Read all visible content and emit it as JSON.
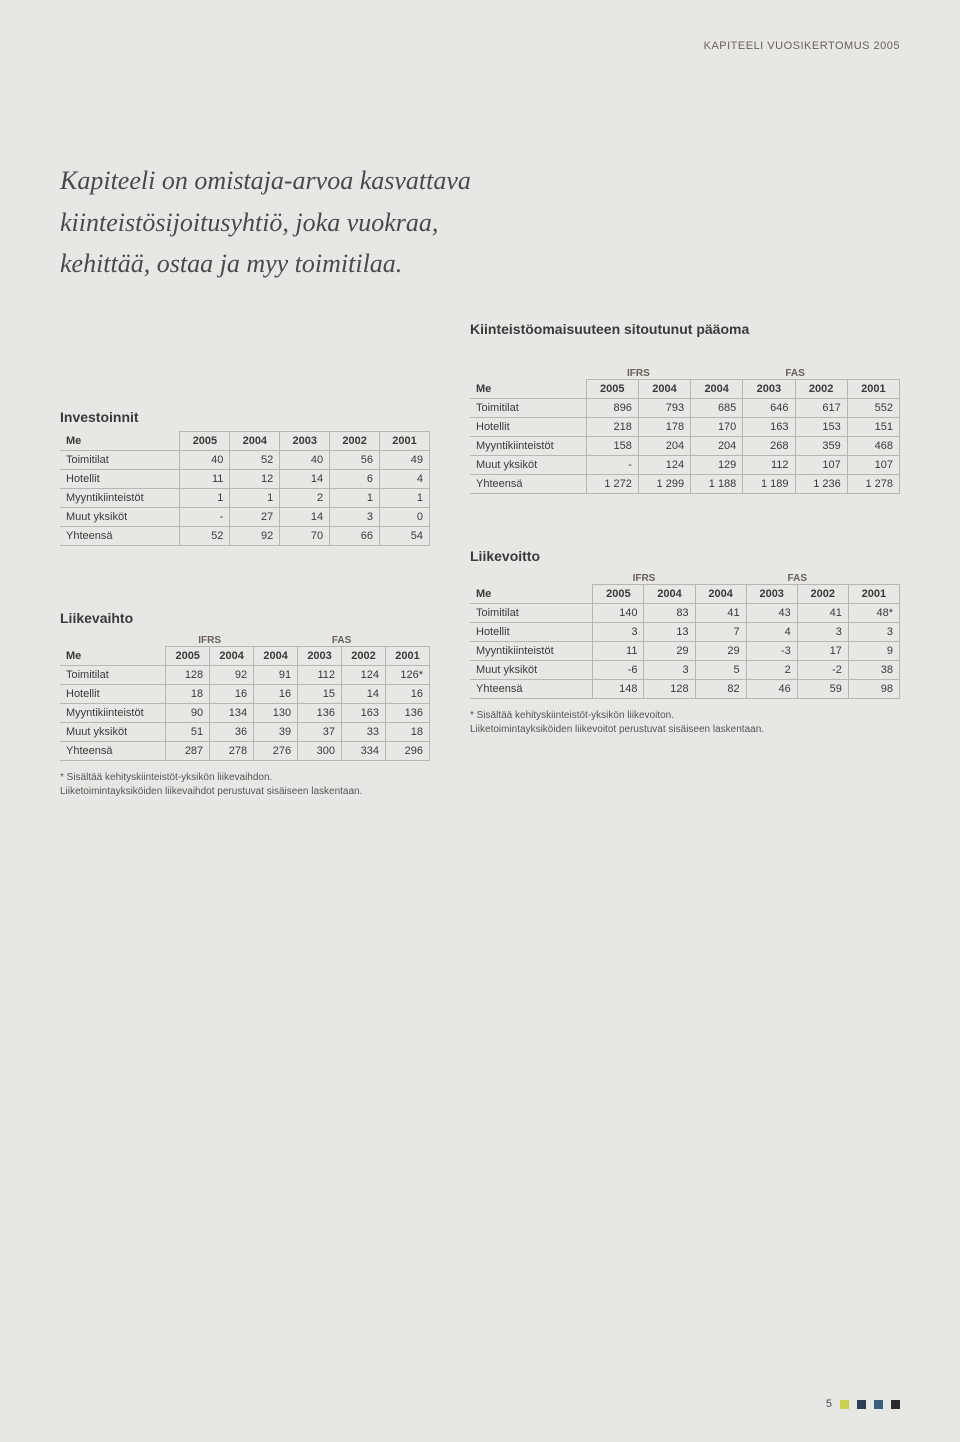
{
  "header_small": "KAPITEELI VUOSIKERTOMUS 2005",
  "quote_lines": [
    "Kapiteeli on omistaja-arvoa kasvattava",
    "kiinteistösijoitusyhtiö, joka vuokraa,",
    "kehittää, ostaa ja myy toimitilaa."
  ],
  "section_titles": {
    "kiinteisto": "Kiinteistöomaisuuteen sitoutunut pääoma",
    "investoinnit": "Investoinnit",
    "liikevaihto": "Liikevaihto",
    "liikevoitto": "Liikevoitto"
  },
  "labels": {
    "me": "Me",
    "ifrs": "IFRS",
    "fas": "FAS",
    "toimitilat": "Toimitilat",
    "hotellit": "Hotellit",
    "myyntikiinteistot": "Myyntikiinteistöt",
    "muut": "Muut yksiköt",
    "yhteensa": "Yhteensä"
  },
  "investoinnit": {
    "years": [
      "2005",
      "2004",
      "2003",
      "2002",
      "2001"
    ],
    "rows": [
      {
        "label": "Toimitilat",
        "vals": [
          "40",
          "52",
          "40",
          "56",
          "49"
        ]
      },
      {
        "label": "Hotellit",
        "vals": [
          "11",
          "12",
          "14",
          "6",
          "4"
        ]
      },
      {
        "label": "Myyntikiinteistöt",
        "vals": [
          "1",
          "1",
          "2",
          "1",
          "1"
        ]
      },
      {
        "label": "Muut yksiköt",
        "vals": [
          "-",
          "27",
          "14",
          "3",
          "0"
        ]
      },
      {
        "label": "Yhteensä",
        "vals": [
          "52",
          "92",
          "70",
          "66",
          "54"
        ]
      }
    ]
  },
  "liikevaihto": {
    "super": [
      "IFRS",
      "FAS"
    ],
    "years": [
      "2005",
      "2004",
      "2004",
      "2003",
      "2002",
      "2001"
    ],
    "rows": [
      {
        "label": "Toimitilat",
        "vals": [
          "128",
          "92",
          "91",
          "112",
          "124",
          "126*"
        ]
      },
      {
        "label": "Hotellit",
        "vals": [
          "18",
          "16",
          "16",
          "15",
          "14",
          "16"
        ]
      },
      {
        "label": "Myyntikiinteistöt",
        "vals": [
          "90",
          "134",
          "130",
          "136",
          "163",
          "136"
        ]
      },
      {
        "label": "Muut yksiköt",
        "vals": [
          "51",
          "36",
          "39",
          "37",
          "33",
          "18"
        ]
      },
      {
        "label": "Yhteensä",
        "vals": [
          "287",
          "278",
          "276",
          "300",
          "334",
          "296"
        ]
      }
    ],
    "footnote1": "* Sisältää kehityskiinteistöt-yksikön liikevaihdon.",
    "footnote2": "Liiketoimintayksiköiden liikevaihdot perustuvat sisäiseen laskentaan."
  },
  "kiinteisto": {
    "super": [
      "IFRS",
      "FAS"
    ],
    "years": [
      "2005",
      "2004",
      "2004",
      "2003",
      "2002",
      "2001"
    ],
    "rows": [
      {
        "label": "Toimitilat",
        "vals": [
          "896",
          "793",
          "685",
          "646",
          "617",
          "552"
        ]
      },
      {
        "label": "Hotellit",
        "vals": [
          "218",
          "178",
          "170",
          "163",
          "153",
          "151"
        ]
      },
      {
        "label": "Myyntikiinteistöt",
        "vals": [
          "158",
          "204",
          "204",
          "268",
          "359",
          "468"
        ]
      },
      {
        "label": "Muut yksiköt",
        "vals": [
          "-",
          "124",
          "129",
          "112",
          "107",
          "107"
        ]
      },
      {
        "label": "Yhteensä",
        "vals": [
          "1 272",
          "1 299",
          "1 188",
          "1 189",
          "1 236",
          "1 278"
        ]
      }
    ]
  },
  "liikevoitto": {
    "super": [
      "IFRS",
      "FAS"
    ],
    "years": [
      "2005",
      "2004",
      "2004",
      "2003",
      "2002",
      "2001"
    ],
    "rows": [
      {
        "label": "Toimitilat",
        "vals": [
          "140",
          "83",
          "41",
          "43",
          "41",
          "48*"
        ]
      },
      {
        "label": "Hotellit",
        "vals": [
          "3",
          "13",
          "7",
          "4",
          "3",
          "3"
        ]
      },
      {
        "label": "Myyntikiinteistöt",
        "vals": [
          "11",
          "29",
          "29",
          "-3",
          "17",
          "9"
        ]
      },
      {
        "label": "Muut yksiköt",
        "vals": [
          "-6",
          "3",
          "5",
          "2",
          "-2",
          "38"
        ]
      },
      {
        "label": "Yhteensä",
        "vals": [
          "148",
          "128",
          "82",
          "46",
          "59",
          "98"
        ]
      }
    ],
    "footnote1": "* Sisältää kehityskiinteistöt-yksikön liikevoiton.",
    "footnote2": "Liiketoimintayksiköiden liikevoitot perustuvat sisäiseen laskentaan."
  },
  "page_number": "5",
  "footer_colors": [
    "#c7d14a",
    "#2c3e5a",
    "#3a5f7a",
    "#2a2a2a"
  ]
}
